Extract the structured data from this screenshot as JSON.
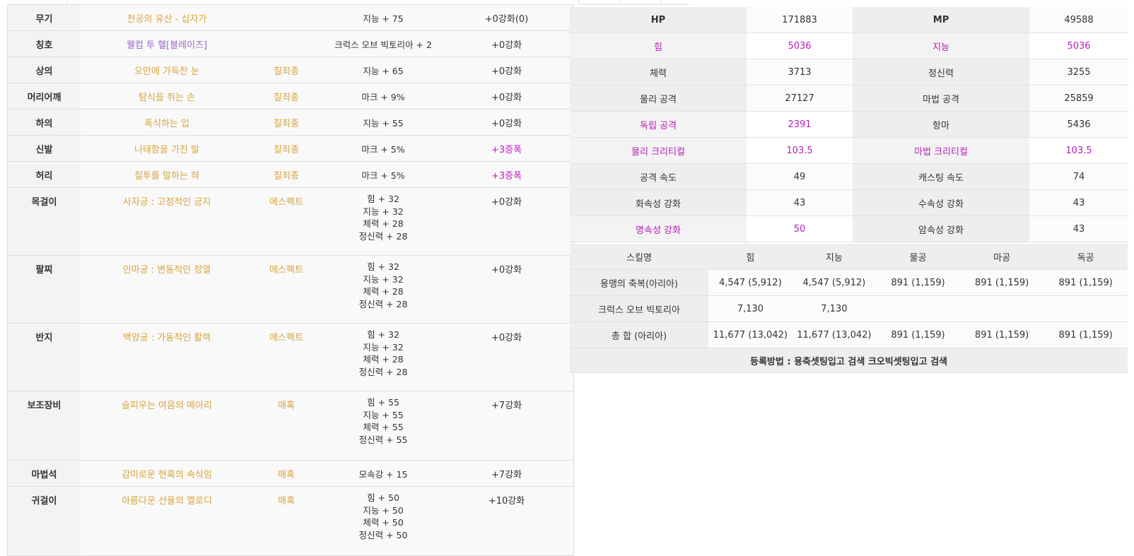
{
  "equipment": [
    {
      "slot": "무기",
      "item": "천공의 유산 - 십자가",
      "set": "",
      "options": [
        "지능 + 75"
      ],
      "enhance": "+0강화(0)",
      "enhance_style": "normal",
      "item_style": "gold"
    },
    {
      "slot": "칭호",
      "item": "웰컴 투 헬[블레이즈]",
      "set": "",
      "options": [
        "크럭스 오브 빅토리아 + 2"
      ],
      "enhance": "+0강화",
      "enhance_style": "normal",
      "item_style": "purple"
    },
    {
      "slot": "상의",
      "item": "오만에 가득찬 눈",
      "set": "칠죄종",
      "options": [
        "지능 + 65"
      ],
      "enhance": "+0강화",
      "enhance_style": "normal",
      "item_style": "gold"
    },
    {
      "slot": "머리어깨",
      "item": "탐식을 쥐는 손",
      "set": "칠죄종",
      "options": [
        "마크 + 9%"
      ],
      "enhance": "+0강화",
      "enhance_style": "normal",
      "item_style": "gold"
    },
    {
      "slot": "하의",
      "item": "폭식하는 입",
      "set": "칠죄종",
      "options": [
        "지능 + 55"
      ],
      "enhance": "+0강화",
      "enhance_style": "normal",
      "item_style": "gold"
    },
    {
      "slot": "신발",
      "item": "나태함을 가진 발",
      "set": "칠죄종",
      "options": [
        "마크 + 5%"
      ],
      "enhance": "+3증폭",
      "enhance_style": "magenta",
      "item_style": "gold"
    },
    {
      "slot": "허리",
      "item": "질투를 말하는 혀",
      "set": "칠죄종",
      "options": [
        "마크 + 5%"
      ],
      "enhance": "+3증폭",
      "enhance_style": "magenta",
      "item_style": "gold"
    },
    {
      "slot": "목걸이",
      "item": "사자궁 : 고정적인 긍지",
      "set": "에스펙트",
      "options": [
        "힘 + 32",
        "지능 + 32",
        "체력 + 28",
        "정신력 + 28"
      ],
      "enhance": "+0강화",
      "enhance_style": "normal",
      "item_style": "gold"
    },
    {
      "slot": "팔찌",
      "item": "인마궁 : 변동적인 정열",
      "set": "에스펙트",
      "options": [
        "힘 + 32",
        "지능 + 32",
        "체력 + 28",
        "정신력 + 28"
      ],
      "enhance": "+0강화",
      "enhance_style": "normal",
      "item_style": "gold"
    },
    {
      "slot": "반지",
      "item": "백양궁 : 가동적인 활력",
      "set": "에스펙트",
      "options": [
        "힘 + 32",
        "지능 + 32",
        "체력 + 28",
        "정신력 + 28"
      ],
      "enhance": "+0강화",
      "enhance_style": "normal",
      "item_style": "gold"
    },
    {
      "slot": "보조장비",
      "item": "슬피우는 여음의 메아리",
      "set": "매혹",
      "options": [
        "힘 + 55",
        "지능 + 55",
        "체력 + 55",
        "정신력 + 55"
      ],
      "enhance": "+7강화",
      "enhance_style": "normal",
      "item_style": "gold"
    },
    {
      "slot": "마법석",
      "item": "감미로운 현혹의 속삭임",
      "set": "매혹",
      "options": [
        "모속강 + 15"
      ],
      "enhance": "+7강화",
      "enhance_style": "normal",
      "item_style": "gold"
    },
    {
      "slot": "귀걸이",
      "item": "아름다운 선율의 멜로디",
      "set": "매혹",
      "options": [
        "힘 + 50",
        "지능 + 50",
        "체력 + 50",
        "정신력 + 50"
      ],
      "enhance": "+10강화",
      "enhance_style": "normal",
      "item_style": "gold"
    }
  ],
  "stats": [
    {
      "l1": "HP",
      "v1": "171883",
      "l2": "MP",
      "v2": "49588",
      "highlight": false
    },
    {
      "l1": "힘",
      "v1": "5036",
      "l2": "지능",
      "v2": "5036",
      "highlight": true
    },
    {
      "l1": "체력",
      "v1": "3713",
      "l2": "정신력",
      "v2": "3255",
      "highlight": false
    },
    {
      "l1": "물리 공격",
      "v1": "27127",
      "l2": "마법 공격",
      "v2": "25859",
      "highlight": false
    },
    {
      "l1": "독립 공격",
      "v1": "2391",
      "l2": "항마",
      "v2": "5436",
      "highlight": "left"
    },
    {
      "l1": "물리 크리티컬",
      "v1": "103.5",
      "l2": "마법 크리티컬",
      "v2": "103.5",
      "highlight": true
    },
    {
      "l1": "공격 속도",
      "v1": "49",
      "l2": "캐스팅 속도",
      "v2": "74",
      "highlight": false
    },
    {
      "l1": "화속성 강화",
      "v1": "43",
      "l2": "수속성 강화",
      "v2": "43",
      "highlight": false
    },
    {
      "l1": "명속성 강화",
      "v1": "50",
      "l2": "암속성 강화",
      "v2": "43",
      "highlight": "left"
    }
  ],
  "skills": {
    "headers": [
      "스킬명",
      "힘",
      "지능",
      "물공",
      "마공",
      "독공"
    ],
    "rows": [
      [
        "용맹의 축복(아리아)",
        "4,547 (5,912)",
        "4,547 (5,912)",
        "891 (1,159)",
        "891 (1,159)",
        "891 (1,159)"
      ],
      [
        "크럭스 오브 빅토리아",
        "7,130",
        "7,130",
        "",
        "",
        ""
      ],
      [
        "총 합 (아리아)",
        "11,677 (13,042)",
        "11,677 (13,042)",
        "891 (1,159)",
        "891 (1,159)",
        "891 (1,159)"
      ]
    ],
    "footer": "등록방법 : 용축셋팅입고 검색 크오빅셋팅입고 검색"
  },
  "colors": {
    "gold": "#d8a33c",
    "purple": "#9966cc",
    "magenta": "#c020c0",
    "stat_magenta": "#b620b6"
  }
}
